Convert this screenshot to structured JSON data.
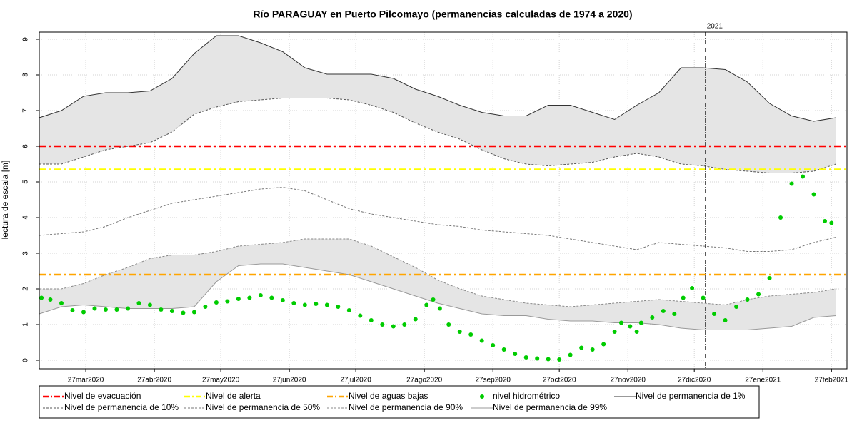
{
  "chart_data": {
    "type": "line",
    "title": "Río PARAGUAY en Puerto Pilcomayo (permanencias calculadas de 1974 a 2020)",
    "y_label": "lectura de escala [m]",
    "xlim": [
      "2020-03-06",
      "2021-03-06"
    ],
    "ylim": [
      -0.24,
      9.2
    ],
    "yticks": [
      0,
      1,
      2,
      3,
      4,
      5,
      6,
      7,
      8,
      9
    ],
    "xticks": [
      {
        "value": "2020-03-27",
        "label": "27mar2020"
      },
      {
        "value": "2020-04-27",
        "label": "27abr2020"
      },
      {
        "value": "2020-05-27",
        "label": "27may2020"
      },
      {
        "value": "2020-06-27",
        "label": "27jun2020"
      },
      {
        "value": "2020-07-27",
        "label": "27jul2020"
      },
      {
        "value": "2020-08-27",
        "label": "27ago2020"
      },
      {
        "value": "2020-09-27",
        "label": "27sep2020"
      },
      {
        "value": "2020-10-27",
        "label": "27oct2020"
      },
      {
        "value": "2020-11-27",
        "label": "27nov2020"
      },
      {
        "value": "2020-12-27",
        "label": "27dic2020"
      },
      {
        "value": "2021-01-27",
        "label": "27ene2021"
      },
      {
        "value": "2021-02-27",
        "label": "27feb2021"
      }
    ],
    "grid": true,
    "band_fill": "#e5e5e5",
    "vline": {
      "x": "2021-01-01",
      "label": "2021",
      "color": "#333333"
    },
    "reference_lines": [
      {
        "name": "Nivel de evacuación",
        "value": 6.0,
        "color": "#ff0000"
      },
      {
        "name": "Nivel de alerta",
        "value": 5.35,
        "color": "#ffff00"
      },
      {
        "name": "Nivel de aguas bajas",
        "value": 2.4,
        "color": "#ffa500"
      }
    ],
    "series": [
      {
        "name": "nivel hidrométrico",
        "color": "#00cc00",
        "style": "points",
        "x": [
          "2020-03-07",
          "2020-03-11",
          "2020-03-16",
          "2020-03-21",
          "2020-03-26",
          "2020-03-31",
          "2020-04-05",
          "2020-04-10",
          "2020-04-15",
          "2020-04-20",
          "2020-04-25",
          "2020-04-30",
          "2020-05-05",
          "2020-05-10",
          "2020-05-15",
          "2020-05-20",
          "2020-05-25",
          "2020-05-30",
          "2020-06-04",
          "2020-06-09",
          "2020-06-14",
          "2020-06-19",
          "2020-06-24",
          "2020-06-29",
          "2020-07-04",
          "2020-07-09",
          "2020-07-14",
          "2020-07-19",
          "2020-07-24",
          "2020-07-29",
          "2020-08-03",
          "2020-08-08",
          "2020-08-13",
          "2020-08-18",
          "2020-08-23",
          "2020-08-28",
          "2020-08-31",
          "2020-09-03",
          "2020-09-07",
          "2020-09-12",
          "2020-09-17",
          "2020-09-22",
          "2020-09-27",
          "2020-10-02",
          "2020-10-07",
          "2020-10-12",
          "2020-10-17",
          "2020-10-22",
          "2020-10-27",
          "2020-11-01",
          "2020-11-06",
          "2020-11-11",
          "2020-11-16",
          "2020-11-21",
          "2020-11-24",
          "2020-11-28",
          "2020-12-01",
          "2020-12-03",
          "2020-12-08",
          "2020-12-13",
          "2020-12-18",
          "2020-12-22",
          "2020-12-26",
          "2020-12-31",
          "2021-01-05",
          "2021-01-10",
          "2021-01-15",
          "2021-01-20",
          "2021-01-25",
          "2021-01-30",
          "2021-02-04",
          "2021-02-09",
          "2021-02-14",
          "2021-02-19",
          "2021-02-24",
          "2021-02-27"
        ],
        "values": [
          1.75,
          1.7,
          1.6,
          1.4,
          1.35,
          1.45,
          1.42,
          1.42,
          1.45,
          1.6,
          1.55,
          1.42,
          1.38,
          1.33,
          1.35,
          1.5,
          1.62,
          1.65,
          1.72,
          1.75,
          1.82,
          1.75,
          1.68,
          1.6,
          1.55,
          1.58,
          1.55,
          1.5,
          1.4,
          1.25,
          1.12,
          1.0,
          0.95,
          1.0,
          1.15,
          1.55,
          1.7,
          1.45,
          1.0,
          0.8,
          0.72,
          0.55,
          0.42,
          0.3,
          0.18,
          0.08,
          0.05,
          0.03,
          0.02,
          0.15,
          0.35,
          0.3,
          0.45,
          0.8,
          1.05,
          0.95,
          0.8,
          1.05,
          1.2,
          1.38,
          1.3,
          1.75,
          2.02,
          1.75,
          1.3,
          1.12,
          1.5,
          1.7,
          1.85,
          2.3,
          4.0,
          4.95,
          5.15,
          4.65,
          3.9,
          3.85
        ]
      },
      {
        "name": "Nivel de permanencia de 1%",
        "color": "#333333",
        "style": "solid",
        "x": [
          "2020-03-06",
          "2020-03-16",
          "2020-03-26",
          "2020-04-05",
          "2020-04-15",
          "2020-04-25",
          "2020-05-05",
          "2020-05-15",
          "2020-05-25",
          "2020-06-04",
          "2020-06-14",
          "2020-06-24",
          "2020-07-04",
          "2020-07-14",
          "2020-07-24",
          "2020-08-03",
          "2020-08-13",
          "2020-08-23",
          "2020-09-02",
          "2020-09-12",
          "2020-09-22",
          "2020-10-02",
          "2020-10-12",
          "2020-10-22",
          "2020-11-01",
          "2020-11-11",
          "2020-11-21",
          "2020-12-01",
          "2020-12-11",
          "2020-12-21",
          "2020-12-31",
          "2021-01-10",
          "2021-01-20",
          "2021-01-30",
          "2021-02-09",
          "2021-02-19",
          "2021-03-01"
        ],
        "values": [
          6.8,
          7.0,
          7.4,
          7.5,
          7.5,
          7.55,
          7.9,
          8.6,
          9.1,
          9.1,
          8.9,
          8.65,
          8.2,
          8.02,
          8.02,
          8.02,
          7.9,
          7.6,
          7.4,
          7.15,
          6.95,
          6.85,
          6.85,
          7.15,
          7.15,
          6.95,
          6.75,
          7.15,
          7.5,
          8.2,
          8.2,
          8.15,
          7.8,
          7.2,
          6.85,
          6.7,
          6.8
        ]
      },
      {
        "name": "Nivel de permanencia de 10%",
        "color": "#555555",
        "style": "dashed",
        "x": [
          "2020-03-06",
          "2020-03-16",
          "2020-03-26",
          "2020-04-05",
          "2020-04-15",
          "2020-04-25",
          "2020-05-05",
          "2020-05-15",
          "2020-05-25",
          "2020-06-04",
          "2020-06-14",
          "2020-06-24",
          "2020-07-04",
          "2020-07-14",
          "2020-07-24",
          "2020-08-03",
          "2020-08-13",
          "2020-08-23",
          "2020-09-02",
          "2020-09-12",
          "2020-09-22",
          "2020-10-02",
          "2020-10-12",
          "2020-10-22",
          "2020-11-01",
          "2020-11-11",
          "2020-11-21",
          "2020-12-01",
          "2020-12-11",
          "2020-12-21",
          "2020-12-31",
          "2021-01-10",
          "2021-01-20",
          "2021-01-30",
          "2021-02-09",
          "2021-02-19",
          "2021-03-01"
        ],
        "values": [
          5.5,
          5.5,
          5.7,
          5.9,
          6.0,
          6.1,
          6.4,
          6.9,
          7.1,
          7.25,
          7.3,
          7.35,
          7.35,
          7.35,
          7.3,
          7.15,
          6.95,
          6.65,
          6.4,
          6.2,
          5.9,
          5.65,
          5.5,
          5.45,
          5.5,
          5.55,
          5.7,
          5.8,
          5.7,
          5.5,
          5.45,
          5.35,
          5.3,
          5.25,
          5.25,
          5.3,
          5.5
        ]
      },
      {
        "name": "Nivel de permanencia de 50%",
        "color": "#777777",
        "style": "dashed",
        "x": [
          "2020-03-06",
          "2020-03-16",
          "2020-03-26",
          "2020-04-05",
          "2020-04-15",
          "2020-04-25",
          "2020-05-05",
          "2020-05-15",
          "2020-05-25",
          "2020-06-04",
          "2020-06-14",
          "2020-06-24",
          "2020-07-04",
          "2020-07-14",
          "2020-07-24",
          "2020-08-03",
          "2020-08-13",
          "2020-08-23",
          "2020-09-02",
          "2020-09-12",
          "2020-09-22",
          "2020-10-02",
          "2020-10-12",
          "2020-10-22",
          "2020-11-01",
          "2020-11-11",
          "2020-11-21",
          "2020-12-01",
          "2020-12-11",
          "2020-12-21",
          "2020-12-31",
          "2021-01-10",
          "2021-01-20",
          "2021-01-30",
          "2021-02-09",
          "2021-02-19",
          "2021-03-01"
        ],
        "values": [
          3.5,
          3.55,
          3.6,
          3.75,
          4.0,
          4.2,
          4.4,
          4.5,
          4.6,
          4.7,
          4.8,
          4.85,
          4.75,
          4.5,
          4.25,
          4.1,
          4.0,
          3.9,
          3.8,
          3.75,
          3.65,
          3.6,
          3.55,
          3.5,
          3.4,
          3.3,
          3.2,
          3.1,
          3.3,
          3.25,
          3.2,
          3.15,
          3.05,
          3.05,
          3.1,
          3.3,
          3.45
        ]
      },
      {
        "name": "Nivel de permanencia de 90%",
        "color": "#888888",
        "style": "dashed",
        "x": [
          "2020-03-06",
          "2020-03-16",
          "2020-03-26",
          "2020-04-05",
          "2020-04-15",
          "2020-04-25",
          "2020-05-05",
          "2020-05-15",
          "2020-05-25",
          "2020-06-04",
          "2020-06-14",
          "2020-06-24",
          "2020-07-04",
          "2020-07-14",
          "2020-07-24",
          "2020-08-03",
          "2020-08-13",
          "2020-08-23",
          "2020-09-02",
          "2020-09-12",
          "2020-09-22",
          "2020-10-02",
          "2020-10-12",
          "2020-10-22",
          "2020-11-01",
          "2020-11-11",
          "2020-11-21",
          "2020-12-01",
          "2020-12-11",
          "2020-12-21",
          "2020-12-31",
          "2021-01-10",
          "2021-01-20",
          "2021-01-30",
          "2021-02-09",
          "2021-02-19",
          "2021-03-01"
        ],
        "values": [
          2.0,
          2.0,
          2.15,
          2.4,
          2.6,
          2.85,
          2.95,
          2.95,
          3.05,
          3.2,
          3.25,
          3.3,
          3.4,
          3.4,
          3.4,
          3.2,
          2.9,
          2.6,
          2.25,
          2.0,
          1.8,
          1.7,
          1.6,
          1.55,
          1.5,
          1.55,
          1.6,
          1.65,
          1.7,
          1.65,
          1.6,
          1.55,
          1.7,
          1.8,
          1.85,
          1.9,
          2.0
        ]
      },
      {
        "name": "Nivel de permanencia de 99%",
        "color": "#999999",
        "style": "solid",
        "x": [
          "2020-03-06",
          "2020-03-16",
          "2020-03-26",
          "2020-04-05",
          "2020-04-15",
          "2020-04-25",
          "2020-05-05",
          "2020-05-15",
          "2020-05-25",
          "2020-06-04",
          "2020-06-14",
          "2020-06-24",
          "2020-07-04",
          "2020-07-14",
          "2020-07-24",
          "2020-08-03",
          "2020-08-13",
          "2020-08-23",
          "2020-09-02",
          "2020-09-12",
          "2020-09-22",
          "2020-10-02",
          "2020-10-12",
          "2020-10-22",
          "2020-11-01",
          "2020-11-11",
          "2020-11-21",
          "2020-12-01",
          "2020-12-11",
          "2020-12-21",
          "2020-12-31",
          "2021-01-10",
          "2021-01-20",
          "2021-01-30",
          "2021-02-09",
          "2021-02-19",
          "2021-03-01"
        ],
        "values": [
          1.3,
          1.5,
          1.55,
          1.5,
          1.45,
          1.45,
          1.45,
          1.5,
          2.2,
          2.65,
          2.7,
          2.7,
          2.6,
          2.5,
          2.4,
          2.2,
          2.0,
          1.8,
          1.6,
          1.45,
          1.3,
          1.25,
          1.25,
          1.15,
          1.1,
          1.1,
          1.05,
          1.05,
          1.0,
          0.9,
          0.85,
          0.85,
          0.85,
          0.9,
          0.95,
          1.2,
          1.25
        ]
      }
    ]
  }
}
